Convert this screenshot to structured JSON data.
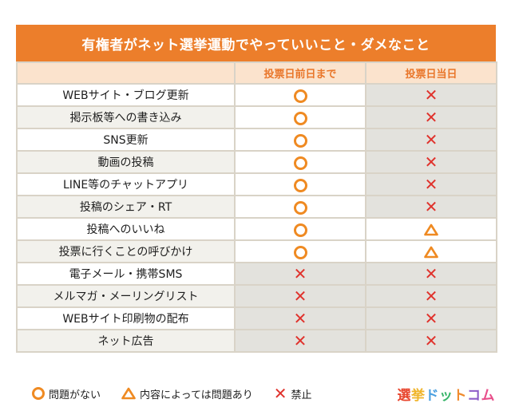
{
  "title": "有権者がネット選挙運動でやっていいこと・ダメなこと",
  "headers": {
    "corner": "",
    "before": "投票日前日まで",
    "day": "投票日当日"
  },
  "rows": [
    {
      "label": "WEBサイト・ブログ更新",
      "before": "ok",
      "day": "ng"
    },
    {
      "label": "掲示板等への書き込み",
      "before": "ok",
      "day": "ng"
    },
    {
      "label": "SNS更新",
      "before": "ok",
      "day": "ng"
    },
    {
      "label": "動画の投稿",
      "before": "ok",
      "day": "ng"
    },
    {
      "label": "LINE等のチャットアプリ",
      "before": "ok",
      "day": "ng"
    },
    {
      "label": "投稿のシェア・RT",
      "before": "ok",
      "day": "ng"
    },
    {
      "label": "投稿へのいいね",
      "before": "ok",
      "day": "warn"
    },
    {
      "label": "投票に行くことの呼びかけ",
      "before": "ok",
      "day": "warn"
    },
    {
      "label": "電子メール・携帯SMS",
      "before": "ng",
      "day": "ng"
    },
    {
      "label": "メルマガ・メーリングリスト",
      "before": "ng",
      "day": "ng"
    },
    {
      "label": "WEBサイト印刷物の配布",
      "before": "ng",
      "day": "ng"
    },
    {
      "label": "ネット広告",
      "before": "ng",
      "day": "ng"
    }
  ],
  "legend": {
    "ok": "問題がない",
    "warn": "内容によっては問題あり",
    "ng": "禁止"
  },
  "logo": {
    "text": "選挙ドットコム",
    "colors": [
      "#e8452d",
      "#f0b429",
      "#4a9fe0",
      "#38b56a",
      "#f08a2c",
      "#8d5cc8",
      "#e84e8a"
    ]
  },
  "colors": {
    "accent": "#ec7e2b",
    "ok": "#ef8a22",
    "ng": "#e0322c",
    "warn": "#ef8a22"
  }
}
